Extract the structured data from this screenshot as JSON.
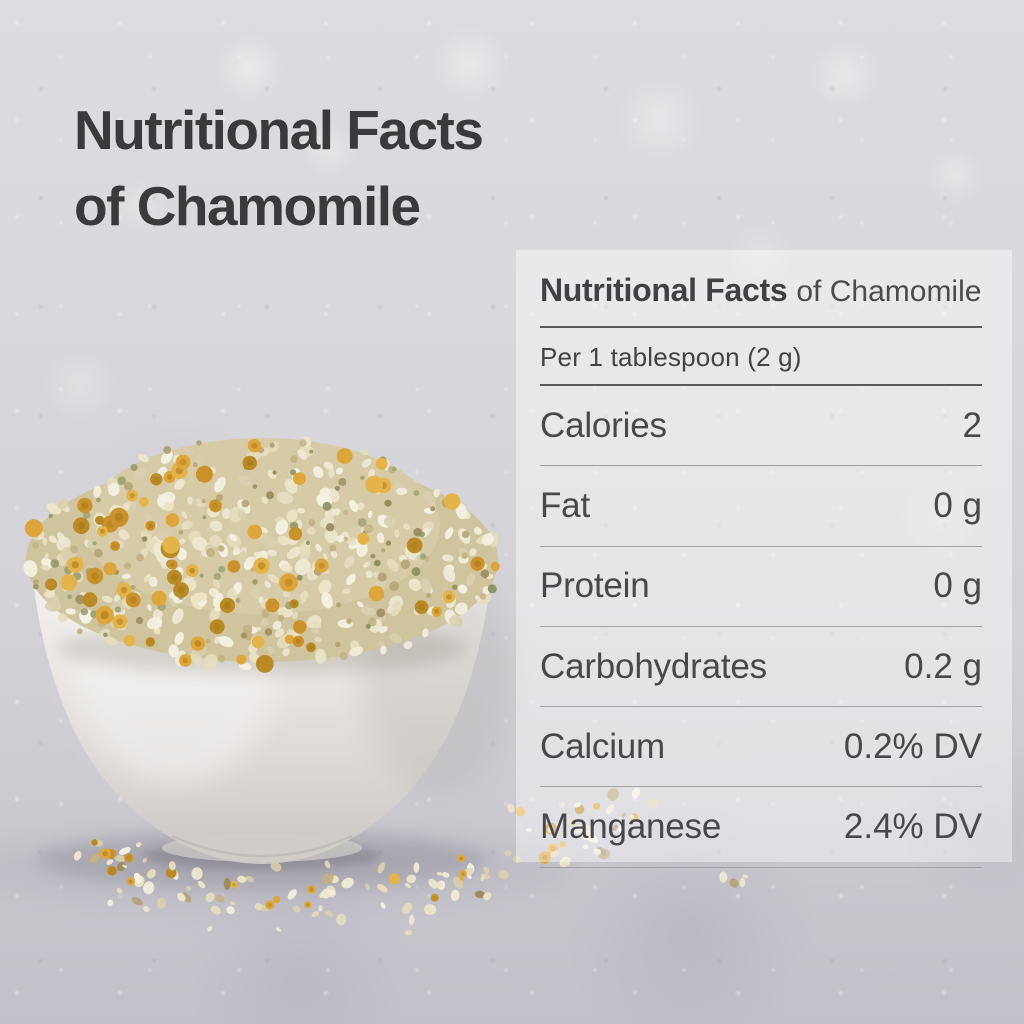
{
  "title": {
    "line1": "Nutritional Facts",
    "line2": "of Chamomile"
  },
  "facts_panel": {
    "title_bold": "Nutritional Facts",
    "title_suffix": "of Chamomile",
    "serving": "Per 1 tablespoon (2 g)",
    "rows": [
      {
        "label": "Calories",
        "value": "2"
      },
      {
        "label": "Fat",
        "value": "0 g"
      },
      {
        "label": "Protein",
        "value": "0 g"
      },
      {
        "label": "Carbohydrates",
        "value": "0.2 g"
      },
      {
        "label": "Calcium",
        "value": "0.2% DV"
      },
      {
        "label": "Manganese",
        "value": "2.4% DV"
      }
    ]
  },
  "illustration": {
    "description": "white ceramic bowl heaped with dried chamomile flowers, loose petals scattered on the surface",
    "palette": {
      "cream": [
        "#efe9d4",
        "#e6ddbe",
        "#f5f1e2",
        "#d9cfae",
        "#ece5c8"
      ],
      "yellow": [
        "#dca63b",
        "#c9922a",
        "#e4b44a",
        "#b98a25"
      ],
      "yellow_core": [
        "#b07f1e",
        "#a57618"
      ],
      "tan": [
        "#b3a276",
        "#c2b285",
        "#9c8b5d"
      ],
      "green": [
        "#9aa06e",
        "#8c9162"
      ],
      "blob_base_outer": "#cfc49d",
      "blob_base_inner": "#d6cba6",
      "bowl_light": "#f5f3f1",
      "bowl_dark": "#c8c4c1",
      "ground_shadow": "#8a8893"
    }
  },
  "colors": {
    "background": "#d6d5da",
    "panel_fill": "rgba(255,255,255,0.42)",
    "heading_text": "#3a393c",
    "body_text": "#48474b",
    "rule_strong": "#5a595d",
    "rule_light": "#a2a1a6"
  }
}
